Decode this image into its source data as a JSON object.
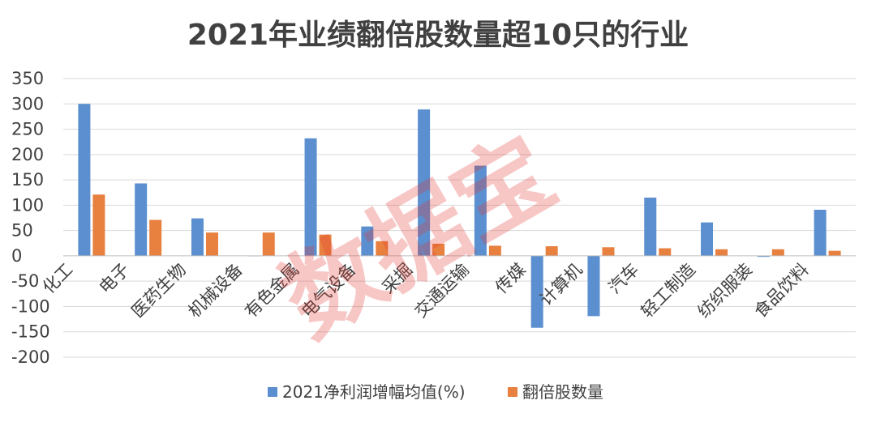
{
  "chart_data": {
    "type": "bar",
    "title": "2021年业绩翻倍股数量超10只的行业",
    "categories": [
      "化工",
      "电子",
      "医药生物",
      "机械设备",
      "有色金属",
      "电气设备",
      "采掘",
      "交通运输",
      "传媒",
      "计算机",
      "汽车",
      "轻工制造",
      "纺织服装",
      "食品饮料"
    ],
    "series": [
      {
        "name": "2021净利润增幅均值(%)",
        "color": "#5b8fcf",
        "values": [
          300,
          143,
          74,
          0,
          232,
          58,
          289,
          178,
          -142,
          -119,
          115,
          66,
          -2,
          91
        ]
      },
      {
        "name": "翻倍股数量",
        "color": "#e8803f",
        "values": [
          121,
          71,
          46,
          46,
          42,
          29,
          24,
          20,
          19,
          17,
          15,
          13,
          13,
          10
        ]
      }
    ],
    "ylim": [
      -200,
      350
    ],
    "yticks": [
      350,
      300,
      250,
      200,
      150,
      100,
      50,
      0,
      -50,
      -100,
      -150,
      -200
    ],
    "xlabel": "",
    "ylabel": "",
    "grid": true,
    "legend_position": "bottom"
  },
  "watermark": "数据宝"
}
